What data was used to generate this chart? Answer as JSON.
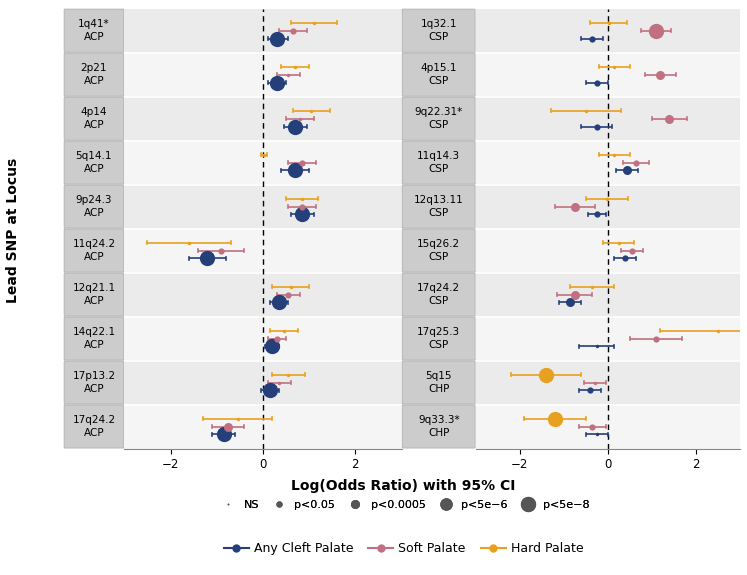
{
  "left_panel": {
    "rows": [
      {
        "label": "1q41*\nACP",
        "points": [
          {
            "color": "navy",
            "est": 0.3,
            "lo": 0.1,
            "hi": 0.55,
            "pcat": "p<5e-8"
          },
          {
            "color": "pink",
            "est": 0.65,
            "lo": 0.35,
            "hi": 0.95,
            "pcat": "p<0.05"
          },
          {
            "color": "gold",
            "est": 1.1,
            "lo": 0.6,
            "hi": 1.6,
            "pcat": "NS"
          }
        ]
      },
      {
        "label": "2p21\nACP",
        "points": [
          {
            "color": "navy",
            "est": 0.3,
            "lo": 0.1,
            "hi": 0.5,
            "pcat": "p<5e-8"
          },
          {
            "color": "pink",
            "est": 0.55,
            "lo": 0.3,
            "hi": 0.8,
            "pcat": "NS"
          },
          {
            "color": "gold",
            "est": 0.7,
            "lo": 0.4,
            "hi": 1.0,
            "pcat": "NS"
          }
        ]
      },
      {
        "label": "4p14\nACP",
        "points": [
          {
            "color": "navy",
            "est": 0.7,
            "lo": 0.45,
            "hi": 0.95,
            "pcat": "p<5e-8"
          },
          {
            "color": "pink",
            "est": 0.8,
            "lo": 0.5,
            "hi": 1.1,
            "pcat": "NS"
          },
          {
            "color": "gold",
            "est": 1.05,
            "lo": 0.65,
            "hi": 1.45,
            "pcat": "NS"
          }
        ]
      },
      {
        "label": "5q14.1\nACP",
        "points": [
          {
            "color": "navy",
            "est": 0.7,
            "lo": 0.4,
            "hi": 1.0,
            "pcat": "p<5e-8"
          },
          {
            "color": "pink",
            "est": 0.85,
            "lo": 0.55,
            "hi": 1.15,
            "pcat": "p<0.05"
          },
          {
            "color": "gold",
            "est": 0.02,
            "lo": -0.05,
            "hi": 0.09,
            "pcat": "NS"
          }
        ]
      },
      {
        "label": "9p24.3\nACP",
        "points": [
          {
            "color": "navy",
            "est": 0.85,
            "lo": 0.6,
            "hi": 1.1,
            "pcat": "p<5e-8"
          },
          {
            "color": "pink",
            "est": 0.85,
            "lo": 0.55,
            "hi": 1.15,
            "pcat": "p<0.05"
          },
          {
            "color": "gold",
            "est": 0.85,
            "lo": 0.5,
            "hi": 1.2,
            "pcat": "NS"
          }
        ]
      },
      {
        "label": "11q24.2\nACP",
        "points": [
          {
            "color": "navy",
            "est": -1.2,
            "lo": -1.6,
            "hi": -0.8,
            "pcat": "p<5e-8"
          },
          {
            "color": "pink",
            "est": -0.9,
            "lo": -1.4,
            "hi": -0.4,
            "pcat": "p<0.05"
          },
          {
            "color": "gold",
            "est": -1.6,
            "lo": -2.5,
            "hi": -0.7,
            "pcat": "NS"
          }
        ]
      },
      {
        "label": "12q21.1\nACP",
        "points": [
          {
            "color": "navy",
            "est": 0.35,
            "lo": 0.15,
            "hi": 0.55,
            "pcat": "p<5e-8"
          },
          {
            "color": "pink",
            "est": 0.55,
            "lo": 0.3,
            "hi": 0.8,
            "pcat": "p<0.05"
          },
          {
            "color": "gold",
            "est": 0.6,
            "lo": 0.2,
            "hi": 1.0,
            "pcat": "NS"
          }
        ]
      },
      {
        "label": "14q22.1\nACP",
        "points": [
          {
            "color": "navy",
            "est": 0.2,
            "lo": 0.05,
            "hi": 0.35,
            "pcat": "p<5e-8"
          },
          {
            "color": "pink",
            "est": 0.3,
            "lo": 0.1,
            "hi": 0.5,
            "pcat": "p<0.05"
          },
          {
            "color": "gold",
            "est": 0.45,
            "lo": 0.15,
            "hi": 0.75,
            "pcat": "NS"
          }
        ]
      },
      {
        "label": "17p13.2\nACP",
        "points": [
          {
            "color": "navy",
            "est": 0.15,
            "lo": -0.05,
            "hi": 0.35,
            "pcat": "p<5e-8"
          },
          {
            "color": "pink",
            "est": 0.35,
            "lo": 0.1,
            "hi": 0.6,
            "pcat": "NS"
          },
          {
            "color": "gold",
            "est": 0.55,
            "lo": 0.2,
            "hi": 0.9,
            "pcat": "NS"
          }
        ]
      },
      {
        "label": "17q24.2\nACP",
        "points": [
          {
            "color": "navy",
            "est": -0.85,
            "lo": -1.1,
            "hi": -0.6,
            "pcat": "p<5e-8"
          },
          {
            "color": "pink",
            "est": -0.75,
            "lo": -1.1,
            "hi": -0.4,
            "pcat": "p<0.0005"
          },
          {
            "color": "gold",
            "est": -0.55,
            "lo": -1.3,
            "hi": 0.2,
            "pcat": "NS"
          }
        ]
      }
    ]
  },
  "right_panel": {
    "rows": [
      {
        "label": "1q32.1\nCSP",
        "points": [
          {
            "color": "navy",
            "est": -0.35,
            "lo": -0.6,
            "hi": -0.1,
            "pcat": "p<0.05"
          },
          {
            "color": "pink",
            "est": 1.1,
            "lo": 0.75,
            "hi": 1.45,
            "pcat": "p<5e-8"
          },
          {
            "color": "gold",
            "est": 0.02,
            "lo": -0.4,
            "hi": 0.44,
            "pcat": "NS"
          }
        ]
      },
      {
        "label": "4p15.1\nCSP",
        "points": [
          {
            "color": "navy",
            "est": -0.25,
            "lo": -0.5,
            "hi": 0.0,
            "pcat": "p<0.05"
          },
          {
            "color": "pink",
            "est": 1.2,
            "lo": 0.85,
            "hi": 1.55,
            "pcat": "p<0.0005"
          },
          {
            "color": "gold",
            "est": 0.15,
            "lo": -0.2,
            "hi": 0.5,
            "pcat": "NS"
          }
        ]
      },
      {
        "label": "9q22.31*\nCSP",
        "points": [
          {
            "color": "navy",
            "est": -0.25,
            "lo": -0.6,
            "hi": 0.1,
            "pcat": "p<0.05"
          },
          {
            "color": "pink",
            "est": 1.4,
            "lo": 1.0,
            "hi": 1.8,
            "pcat": "p<0.0005"
          },
          {
            "color": "gold",
            "est": -0.5,
            "lo": -1.3,
            "hi": 0.3,
            "pcat": "NS"
          }
        ]
      },
      {
        "label": "11q14.3\nCSP",
        "points": [
          {
            "color": "navy",
            "est": 0.45,
            "lo": 0.2,
            "hi": 0.7,
            "pcat": "p<0.0005"
          },
          {
            "color": "pink",
            "est": 0.65,
            "lo": 0.35,
            "hi": 0.95,
            "pcat": "p<0.05"
          },
          {
            "color": "gold",
            "est": 0.15,
            "lo": -0.2,
            "hi": 0.5,
            "pcat": "NS"
          }
        ]
      },
      {
        "label": "12q13.11\nCSP",
        "points": [
          {
            "color": "navy",
            "est": -0.25,
            "lo": -0.45,
            "hi": -0.05,
            "pcat": "p<0.05"
          },
          {
            "color": "pink",
            "est": -0.75,
            "lo": -1.2,
            "hi": -0.3,
            "pcat": "p<0.0005"
          },
          {
            "color": "gold",
            "est": -0.02,
            "lo": -0.5,
            "hi": 0.46,
            "pcat": "NS"
          }
        ]
      },
      {
        "label": "15q26.2\nCSP",
        "points": [
          {
            "color": "navy",
            "est": 0.4,
            "lo": 0.15,
            "hi": 0.65,
            "pcat": "p<0.05"
          },
          {
            "color": "pink",
            "est": 0.55,
            "lo": 0.3,
            "hi": 0.8,
            "pcat": "p<0.05"
          },
          {
            "color": "gold",
            "est": 0.25,
            "lo": -0.1,
            "hi": 0.6,
            "pcat": "NS"
          }
        ]
      },
      {
        "label": "17q24.2\nCSP",
        "points": [
          {
            "color": "navy",
            "est": -0.85,
            "lo": -1.1,
            "hi": -0.6,
            "pcat": "p<0.0005"
          },
          {
            "color": "pink",
            "est": -0.75,
            "lo": -1.15,
            "hi": -0.35,
            "pcat": "p<0.0005"
          },
          {
            "color": "gold",
            "est": -0.35,
            "lo": -0.85,
            "hi": 0.15,
            "pcat": "NS"
          }
        ]
      },
      {
        "label": "17q25.3\nCSP",
        "points": [
          {
            "color": "navy",
            "est": -0.25,
            "lo": -0.65,
            "hi": 0.15,
            "pcat": "NS"
          },
          {
            "color": "pink",
            "est": 1.1,
            "lo": 0.5,
            "hi": 1.7,
            "pcat": "p<0.05"
          },
          {
            "color": "gold",
            "est": 2.5,
            "lo": 1.2,
            "hi": 3.5,
            "pcat": "NS"
          }
        ]
      },
      {
        "label": "5q15\nCHP",
        "points": [
          {
            "color": "navy",
            "est": -0.4,
            "lo": -0.65,
            "hi": -0.15,
            "pcat": "p<0.05"
          },
          {
            "color": "pink",
            "est": -0.3,
            "lo": -0.55,
            "hi": -0.05,
            "pcat": "NS"
          },
          {
            "color": "gold",
            "est": -1.4,
            "lo": -2.2,
            "hi": -0.6,
            "pcat": "p<5e-8"
          }
        ]
      },
      {
        "label": "9q33.3*\nCHP",
        "points": [
          {
            "color": "navy",
            "est": -0.25,
            "lo": -0.5,
            "hi": 0.0,
            "pcat": "NS"
          },
          {
            "color": "pink",
            "est": -0.35,
            "lo": -0.65,
            "hi": -0.05,
            "pcat": "p<0.05"
          },
          {
            "color": "gold",
            "est": -1.2,
            "lo": -1.9,
            "hi": -0.5,
            "pcat": "p<5e-8"
          }
        ]
      }
    ]
  },
  "colors": {
    "navy": "#243F7A",
    "pink": "#C07080",
    "gold": "#E8A020"
  },
  "xlim": [
    -3.0,
    3.0
  ],
  "xticks": [
    -2,
    0,
    2
  ],
  "xlabel": "Log(Odds Ratio) with 95% CI",
  "ylabel": "Lead SNP at Locus",
  "label_bg": "#CCCCCC",
  "row_bg_odd": "#EBEBEB",
  "row_bg_even": "#F5F5F5",
  "grid_color": "#FFFFFF"
}
